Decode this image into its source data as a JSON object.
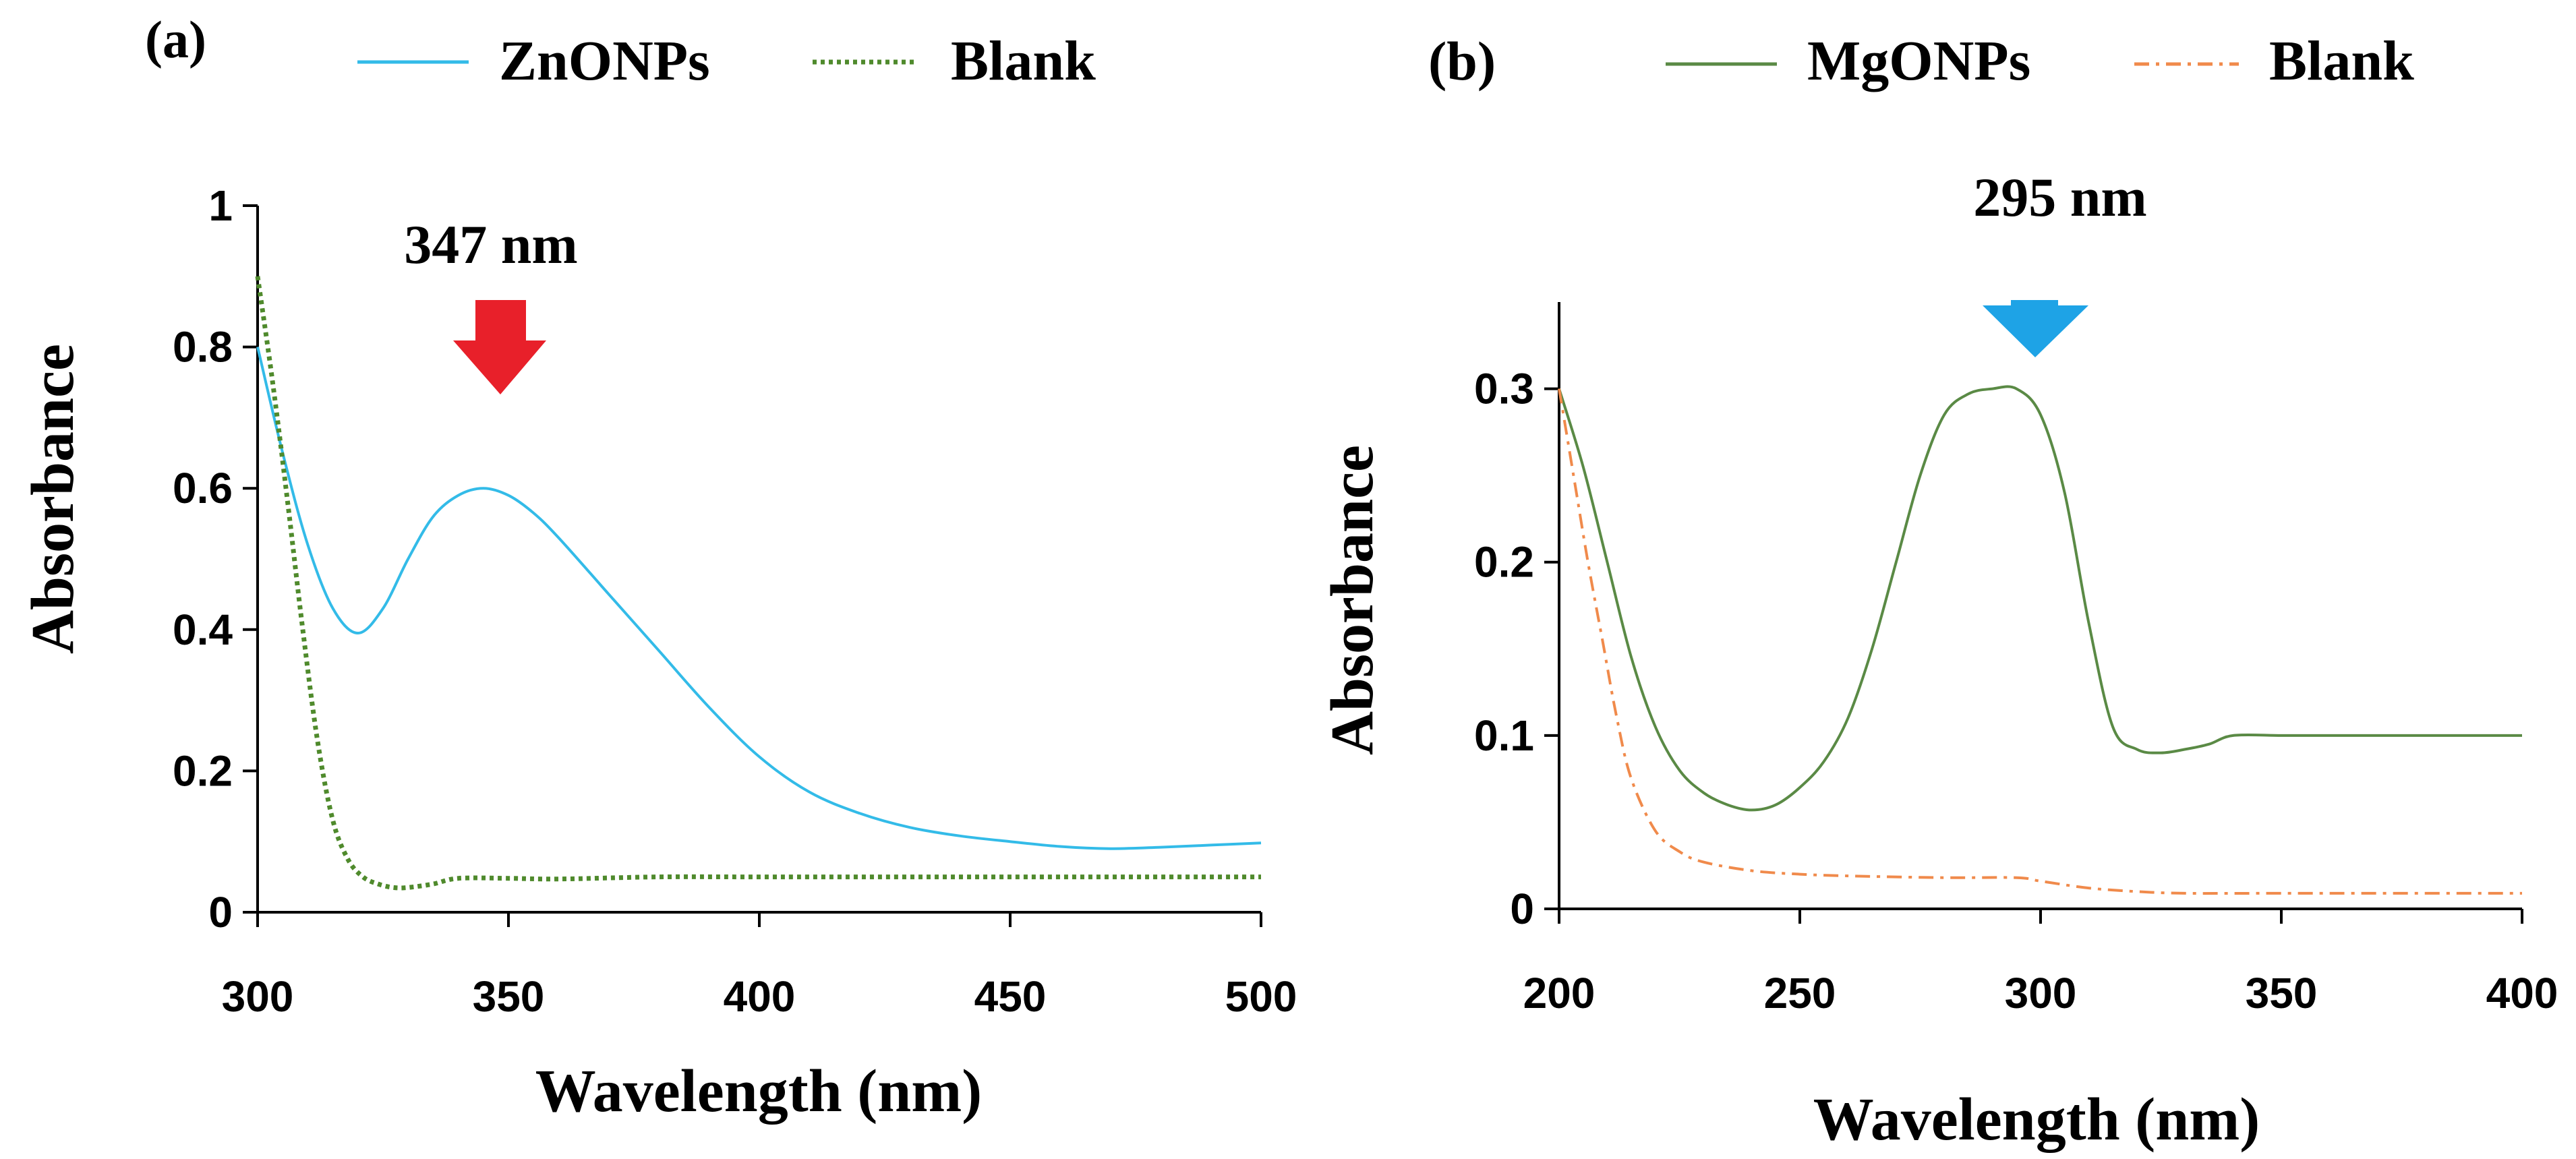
{
  "colors": {
    "zno_line": "#33bbe8",
    "zno_blank": "#4f8a2c",
    "mgo_line": "#5a8a45",
    "mgo_blank": "#f08a4b",
    "arrow_a": "#e8202a",
    "arrow_b": "#1ea3e6",
    "axis": "#000000"
  },
  "chart_data": [
    {
      "type": "line",
      "panel_label": "(a)",
      "xlabel": "Wavelength (nm)",
      "ylabel": "Absorbance",
      "xlim": [
        300,
        500
      ],
      "ylim": [
        0,
        1
      ],
      "xticks": [
        300,
        350,
        400,
        450,
        500
      ],
      "xtick_labels": [
        "300",
        "350",
        "400",
        "450",
        "500"
      ],
      "yticks": [
        0,
        0.2,
        0.4,
        0.6,
        0.8,
        1
      ],
      "ytick_labels": [
        "0",
        "0.2",
        "0.4",
        "0.6",
        "0.8",
        "1"
      ],
      "grid": false,
      "legend_position": "top",
      "annotation": {
        "text": "347 nm",
        "arrow_x": 347,
        "icon": "down-arrow-icon"
      },
      "series": [
        {
          "name": "ZnONPs",
          "style": "solid",
          "color_key": "zno_line",
          "x": [
            300,
            305,
            310,
            315,
            320,
            325,
            330,
            335,
            340,
            345,
            350,
            355,
            360,
            370,
            380,
            390,
            400,
            410,
            420,
            430,
            440,
            450,
            460,
            470,
            480,
            490,
            500
          ],
          "y": [
            0.8,
            0.65,
            0.52,
            0.43,
            0.395,
            0.43,
            0.5,
            0.56,
            0.59,
            0.6,
            0.59,
            0.565,
            0.53,
            0.45,
            0.37,
            0.29,
            0.22,
            0.17,
            0.14,
            0.12,
            0.108,
            0.1,
            0.093,
            0.09,
            0.092,
            0.095,
            0.098
          ]
        },
        {
          "name": "Blank",
          "style": "dotted",
          "color_key": "zno_blank",
          "x": [
            300,
            303,
            306,
            309,
            312,
            315,
            318,
            321,
            324,
            327,
            330,
            335,
            340,
            350,
            360,
            380,
            400,
            450,
            500
          ],
          "y": [
            0.9,
            0.75,
            0.58,
            0.4,
            0.24,
            0.13,
            0.075,
            0.05,
            0.04,
            0.035,
            0.035,
            0.04,
            0.048,
            0.048,
            0.047,
            0.05,
            0.05,
            0.05,
            0.05
          ]
        }
      ]
    },
    {
      "type": "line",
      "panel_label": "(b)",
      "xlabel": "Wavelength (nm)",
      "ylabel": "Absorbance",
      "xlim": [
        200,
        400
      ],
      "ylim": [
        0,
        0.35
      ],
      "xticks": [
        200,
        250,
        300,
        350,
        400
      ],
      "xtick_labels": [
        "200",
        "250",
        "300",
        "350",
        "400"
      ],
      "yticks": [
        0,
        0.1,
        0.2,
        0.3
      ],
      "ytick_labels": [
        "0",
        "0.1",
        "0.2",
        "0.3"
      ],
      "grid": false,
      "legend_position": "top",
      "annotation": {
        "text": "295 nm",
        "arrow_x": 301,
        "icon": "down-arrow-icon"
      },
      "series": [
        {
          "name": "MgONPs",
          "style": "solid",
          "color_key": "mgo_line",
          "x": [
            200,
            205,
            210,
            215,
            220,
            225,
            230,
            235,
            240,
            245,
            250,
            255,
            260,
            265,
            270,
            275,
            280,
            285,
            290,
            295,
            300,
            305,
            310,
            315,
            320,
            325,
            330,
            335,
            340,
            350,
            360,
            380,
            400
          ],
          "y": [
            0.3,
            0.255,
            0.2,
            0.145,
            0.105,
            0.08,
            0.067,
            0.06,
            0.057,
            0.06,
            0.07,
            0.085,
            0.11,
            0.15,
            0.2,
            0.25,
            0.285,
            0.297,
            0.3,
            0.3,
            0.285,
            0.24,
            0.165,
            0.105,
            0.092,
            0.09,
            0.092,
            0.095,
            0.1,
            0.1,
            0.1,
            0.1,
            0.1
          ]
        },
        {
          "name": "Blank",
          "style": "dashdot",
          "color_key": "mgo_blank",
          "x": [
            200,
            203,
            206,
            209,
            212,
            215,
            220,
            225,
            230,
            240,
            250,
            260,
            280,
            295,
            300,
            310,
            320,
            330,
            350,
            400
          ],
          "y": [
            0.3,
            0.25,
            0.2,
            0.155,
            0.11,
            0.075,
            0.045,
            0.033,
            0.027,
            0.022,
            0.02,
            0.019,
            0.018,
            0.018,
            0.016,
            0.012,
            0.01,
            0.009,
            0.009,
            0.009
          ]
        }
      ]
    }
  ]
}
